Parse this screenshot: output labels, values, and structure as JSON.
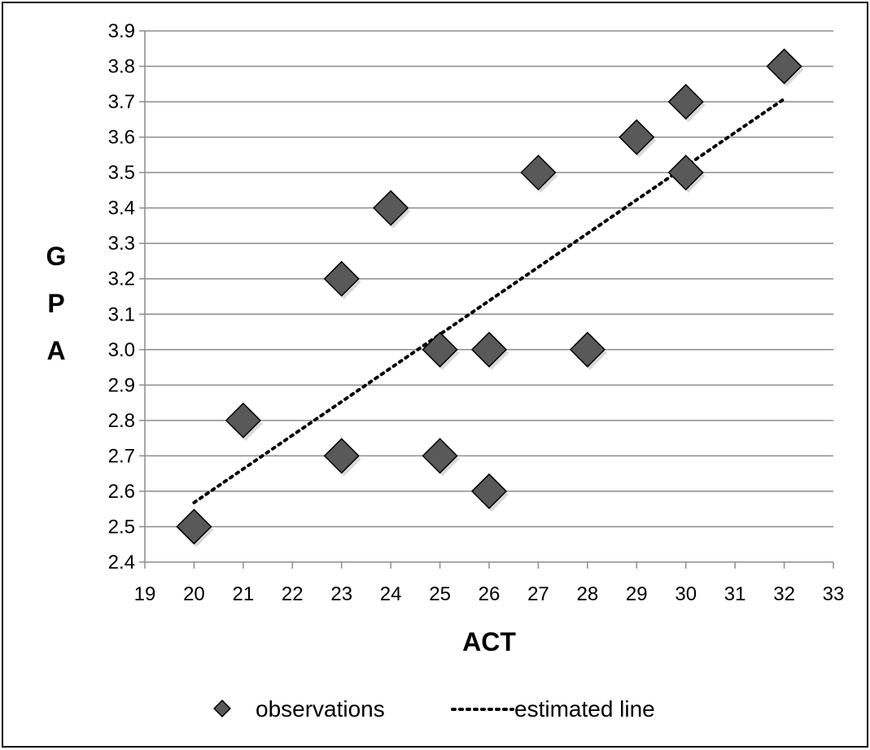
{
  "chart_data": {
    "type": "scatter",
    "title": "",
    "xlabel": "ACT",
    "ylabel": "GPA",
    "ylabel_letters": [
      "G",
      "P",
      "A"
    ],
    "xlim": [
      19,
      33
    ],
    "ylim": [
      2.4,
      3.9
    ],
    "x_ticks": [
      "19",
      "20",
      "21",
      "22",
      "23",
      "24",
      "25",
      "26",
      "27",
      "28",
      "29",
      "30",
      "31",
      "32",
      "33"
    ],
    "y_ticks": [
      "2.4",
      "2.5",
      "2.6",
      "2.7",
      "2.8",
      "2.9",
      "3.0",
      "3.1",
      "3.2",
      "3.3",
      "3.4",
      "3.5",
      "3.6",
      "3.7",
      "3.8",
      "3.9"
    ],
    "grid": "horizontal",
    "legend_position": "bottom",
    "series": [
      {
        "name": "observations",
        "marker": "diamond",
        "color": "#595959",
        "points": [
          {
            "x": 20,
            "y": 2.5
          },
          {
            "x": 21,
            "y": 2.8
          },
          {
            "x": 23,
            "y": 3.2
          },
          {
            "x": 23,
            "y": 2.7
          },
          {
            "x": 24,
            "y": 3.4
          },
          {
            "x": 25,
            "y": 3.0
          },
          {
            "x": 25,
            "y": 2.7
          },
          {
            "x": 26,
            "y": 3.0
          },
          {
            "x": 26,
            "y": 2.6
          },
          {
            "x": 27,
            "y": 3.5
          },
          {
            "x": 28,
            "y": 3.0
          },
          {
            "x": 29,
            "y": 3.6
          },
          {
            "x": 30,
            "y": 3.7
          },
          {
            "x": 30,
            "y": 3.5
          },
          {
            "x": 32,
            "y": 3.8
          }
        ]
      },
      {
        "name": "estimated line",
        "line_style": "dotted",
        "color": "#000000",
        "points": [
          {
            "x": 20,
            "y": 2.568
          },
          {
            "x": 32,
            "y": 3.708
          }
        ]
      }
    ]
  }
}
